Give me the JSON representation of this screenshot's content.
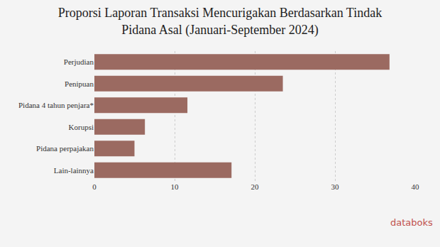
{
  "chart_data": {
    "type": "bar",
    "orientation": "horizontal",
    "title": "Proporsi Laporan Transaksi Mencurigakan Berdasarkan Tindak Pidana Asal (Januari-September 2024)",
    "categories": [
      "Perjudian",
      "Penipuan",
      "Pidana 4 tahun penjara*",
      "Korupsi",
      "Pidana perpajakan",
      "Lain-lainnya"
    ],
    "values": [
      36.8,
      23.5,
      11.6,
      6.3,
      5.0,
      17.1
    ],
    "color": "#9b6a61",
    "xlim": [
      0,
      40
    ],
    "xticks": [
      0,
      10,
      20,
      30,
      40
    ],
    "grid": true,
    "annotations": [
      "databoks"
    ]
  }
}
